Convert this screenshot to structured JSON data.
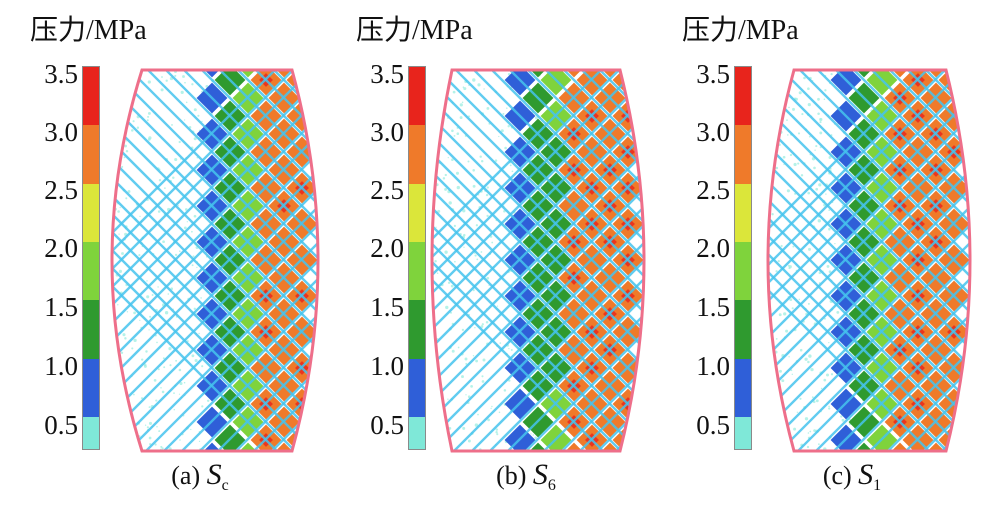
{
  "colorbar": {
    "title": "压力/MPa",
    "ticks": [
      "3.5",
      "3.0",
      "2.5",
      "2.0",
      "1.5",
      "1.0",
      "0.5"
    ],
    "colors": [
      "#e8241c",
      "#ef7a2a",
      "#dbe63a",
      "#7fd33c",
      "#2f9a2f",
      "#2f5fd8",
      "#7fe8d8"
    ]
  },
  "panels": [
    {
      "prefix": "(a)",
      "symbol": "S",
      "subscript": "c"
    },
    {
      "prefix": "(b)",
      "symbol": "S",
      "subscript": "6"
    },
    {
      "prefix": "(c)",
      "symbol": "S",
      "subscript": "1"
    }
  ],
  "colors": {
    "outline": "#ee6f8a",
    "land": "#46c4ee",
    "inner_mist": "#9ceee0"
  }
}
